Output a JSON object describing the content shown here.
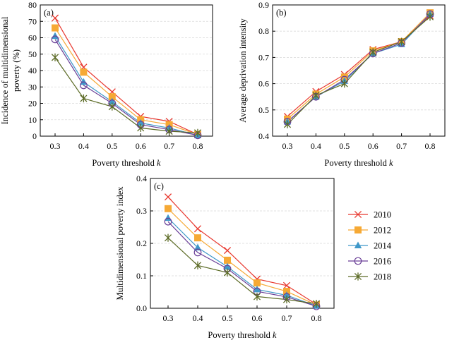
{
  "colors": {
    "2010": "#e8382f",
    "2012": "#f6a935",
    "2014": "#3f98c9",
    "2016": "#6a3f97",
    "2018": "#5c6b26"
  },
  "chart_data": [
    {
      "id": "a",
      "panel_label": "(a)",
      "type": "line",
      "xlabel_prefix": "Poverty threshold ",
      "xlabel_var": "k",
      "ylabel_lines": [
        "Incidence of multidimensional",
        "poverty (%)"
      ],
      "x": [
        0.3,
        0.4,
        0.5,
        0.6,
        0.7,
        0.8
      ],
      "xticks": [
        "0.3",
        "0.4",
        "0.5",
        "0.6",
        "0.7",
        "0.8"
      ],
      "ylim": [
        0,
        80
      ],
      "yticks": [
        "0",
        "10",
        "20",
        "30",
        "40",
        "50",
        "60",
        "70",
        "80"
      ],
      "grid": true,
      "series": [
        {
          "name": "2010",
          "marker": "x",
          "values": [
            72,
            42,
            27,
            12,
            9,
            1
          ]
        },
        {
          "name": "2012",
          "marker": "square",
          "values": [
            66,
            39,
            24,
            10,
            7,
            1
          ]
        },
        {
          "name": "2014",
          "marker": "triangle",
          "values": [
            61,
            33,
            21,
            8,
            5,
            0.5
          ]
        },
        {
          "name": "2016",
          "marker": "circle",
          "values": [
            59,
            31,
            20,
            7,
            4,
            0.5
          ]
        },
        {
          "name": "2018",
          "marker": "star",
          "values": [
            48,
            23,
            18,
            5,
            3,
            2
          ]
        }
      ]
    },
    {
      "id": "b",
      "panel_label": "(b)",
      "type": "line",
      "xlabel_prefix": "Poverty threshold ",
      "xlabel_var": "k",
      "ylabel_lines": [
        "Average deprivation intensity"
      ],
      "x": [
        0.3,
        0.4,
        0.5,
        0.6,
        0.7,
        0.8
      ],
      "xticks": [
        "0.3",
        "0.4",
        "0.5",
        "0.6",
        "0.7",
        "0.8"
      ],
      "ylim": [
        0.4,
        0.9
      ],
      "yticks": [
        "0.4",
        "0.5",
        "0.6",
        "0.7",
        "0.8",
        "0.9"
      ],
      "grid": true,
      "series": [
        {
          "name": "2010",
          "marker": "x",
          "values": [
            0.475,
            0.57,
            0.635,
            0.73,
            0.76,
            0.86
          ]
        },
        {
          "name": "2012",
          "marker": "square",
          "values": [
            0.465,
            0.56,
            0.625,
            0.725,
            0.76,
            0.87
          ]
        },
        {
          "name": "2014",
          "marker": "triangle",
          "values": [
            0.455,
            0.55,
            0.61,
            0.715,
            0.75,
            0.865
          ]
        },
        {
          "name": "2016",
          "marker": "circle",
          "values": [
            0.455,
            0.55,
            0.615,
            0.715,
            0.755,
            0.865
          ]
        },
        {
          "name": "2018",
          "marker": "star",
          "values": [
            0.445,
            0.555,
            0.6,
            0.72,
            0.76,
            0.855
          ]
        }
      ]
    },
    {
      "id": "c",
      "panel_label": "(c)",
      "type": "line",
      "xlabel_prefix": "Poverty threshold ",
      "xlabel_var": "k",
      "ylabel_lines": [
        "Multidimensional poverty index"
      ],
      "x": [
        0.3,
        0.4,
        0.5,
        0.6,
        0.7,
        0.8
      ],
      "xticks": [
        "0.3",
        "0.4",
        "0.5",
        "0.6",
        "0.7",
        "0.8"
      ],
      "ylim": [
        0,
        0.4
      ],
      "yticks": [
        "0.0",
        "0.1",
        "0.2",
        "0.3",
        "0.4"
      ],
      "grid": true,
      "legend_position": "right",
      "series": [
        {
          "name": "2010",
          "marker": "x",
          "values": [
            0.343,
            0.245,
            0.178,
            0.09,
            0.07,
            0.012
          ]
        },
        {
          "name": "2012",
          "marker": "square",
          "values": [
            0.307,
            0.217,
            0.148,
            0.078,
            0.052,
            0.01
          ]
        },
        {
          "name": "2014",
          "marker": "triangle",
          "values": [
            0.278,
            0.187,
            0.128,
            0.058,
            0.04,
            0.007
          ]
        },
        {
          "name": "2016",
          "marker": "circle",
          "values": [
            0.267,
            0.172,
            0.122,
            0.052,
            0.035,
            0.006
          ]
        },
        {
          "name": "2018",
          "marker": "star",
          "values": [
            0.217,
            0.132,
            0.11,
            0.036,
            0.027,
            0.014
          ]
        }
      ]
    }
  ]
}
